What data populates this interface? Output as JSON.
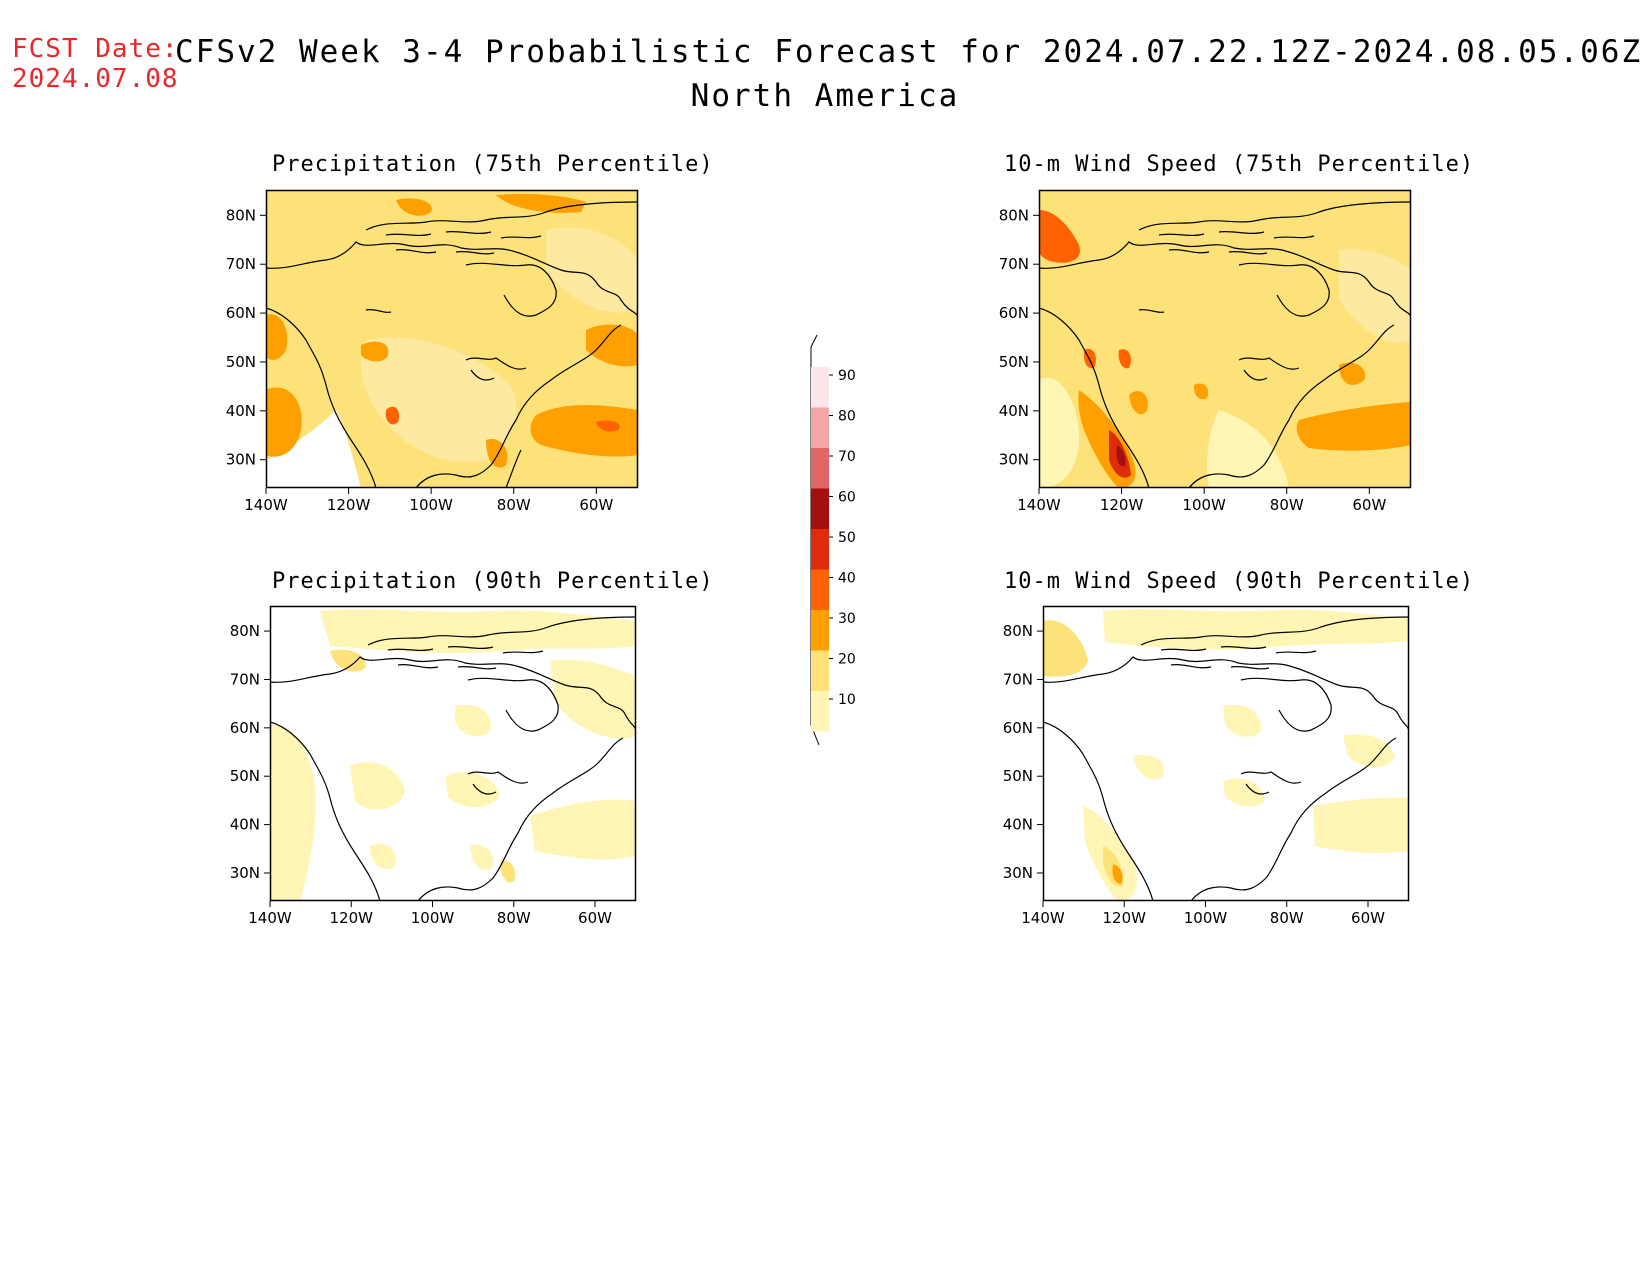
{
  "header": {
    "fcst_date_label": "FCST Date:",
    "fcst_date_value": "2024.07.08",
    "title": "CFSv2 Week 3-4 Probabilistic Forecast for 2024.07.22.12Z-2024.08.05.06Z",
    "subtitle": "North America"
  },
  "axes": {
    "lat_labels": [
      "80N",
      "70N",
      "60N",
      "50N",
      "40N",
      "30N"
    ],
    "lon_labels": [
      "140W",
      "120W",
      "100W",
      "80W",
      "60W"
    ]
  },
  "panels": [
    {
      "id": "precip75",
      "title": "Precipitation (75th Percentile)"
    },
    {
      "id": "wind75",
      "title": "10-m Wind Speed (75th Percentile)"
    },
    {
      "id": "precip90",
      "title": "Precipitation (90th Percentile)"
    },
    {
      "id": "wind90",
      "title": "10-m Wind Speed (90th Percentile)"
    }
  ],
  "colorbar": {
    "labels": [
      "90",
      "80",
      "70",
      "60",
      "50",
      "40",
      "30",
      "20",
      "10"
    ],
    "colors": [
      "#fde6e8",
      "#f4a5a7",
      "#e06666",
      "#a50f0f",
      "#de2b0a",
      "#ff6200",
      "#ffa000",
      "#fde27a",
      "#fff6b5"
    ]
  },
  "palette": {
    "land_light": "#fff6b5",
    "yellow": "#fde27a",
    "orange": "#ffa000",
    "dark_orange": "#ff6200",
    "red": "#de2b0a",
    "dark_red": "#a50f0f",
    "title_red": "#e8282e"
  }
}
